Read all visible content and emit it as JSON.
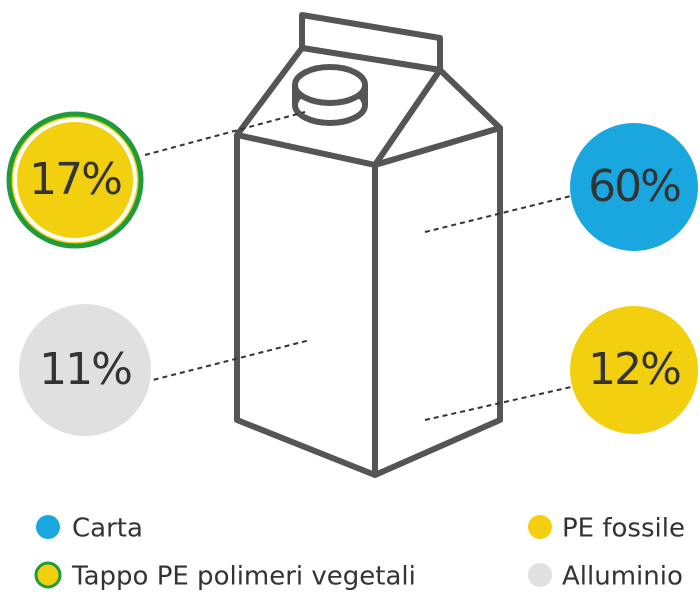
{
  "callouts": [
    {
      "label": "17%"
    },
    {
      "label": "60%"
    },
    {
      "label": "11%"
    },
    {
      "label": "12%"
    }
  ],
  "legend": [
    {
      "label": "Carta"
    },
    {
      "label": "Tappo PE polimeri vegetali"
    },
    {
      "label": "PE fossile"
    },
    {
      "label": "Alluminio"
    }
  ]
}
